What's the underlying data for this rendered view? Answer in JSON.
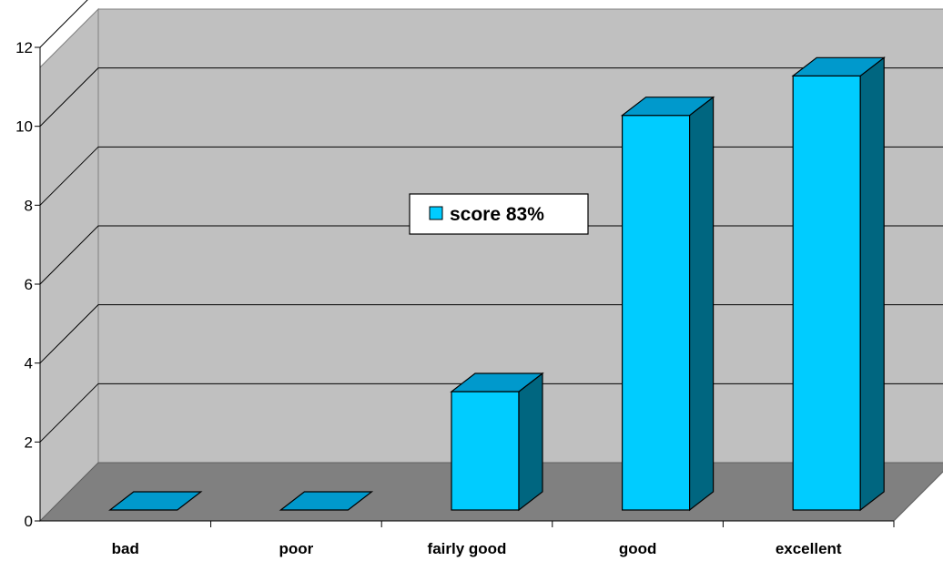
{
  "chart_data": {
    "type": "bar",
    "style": "3d-column",
    "categories": [
      "bad",
      "poor",
      "fairly good",
      "good",
      "excellent"
    ],
    "series": [
      {
        "name": "score 83%",
        "values": [
          0,
          0,
          3,
          10,
          11
        ]
      }
    ],
    "ylim": [
      0,
      12
    ],
    "yticks": [
      "0",
      "2",
      "4",
      "6",
      "8",
      "10",
      "12"
    ],
    "grid": true,
    "legend": "center"
  },
  "colors": {
    "bar_front": "#00CCFF",
    "bar_top": "#0099CC",
    "bar_side": "#006680",
    "wall": "#C0C0C0",
    "floor": "#808080"
  }
}
